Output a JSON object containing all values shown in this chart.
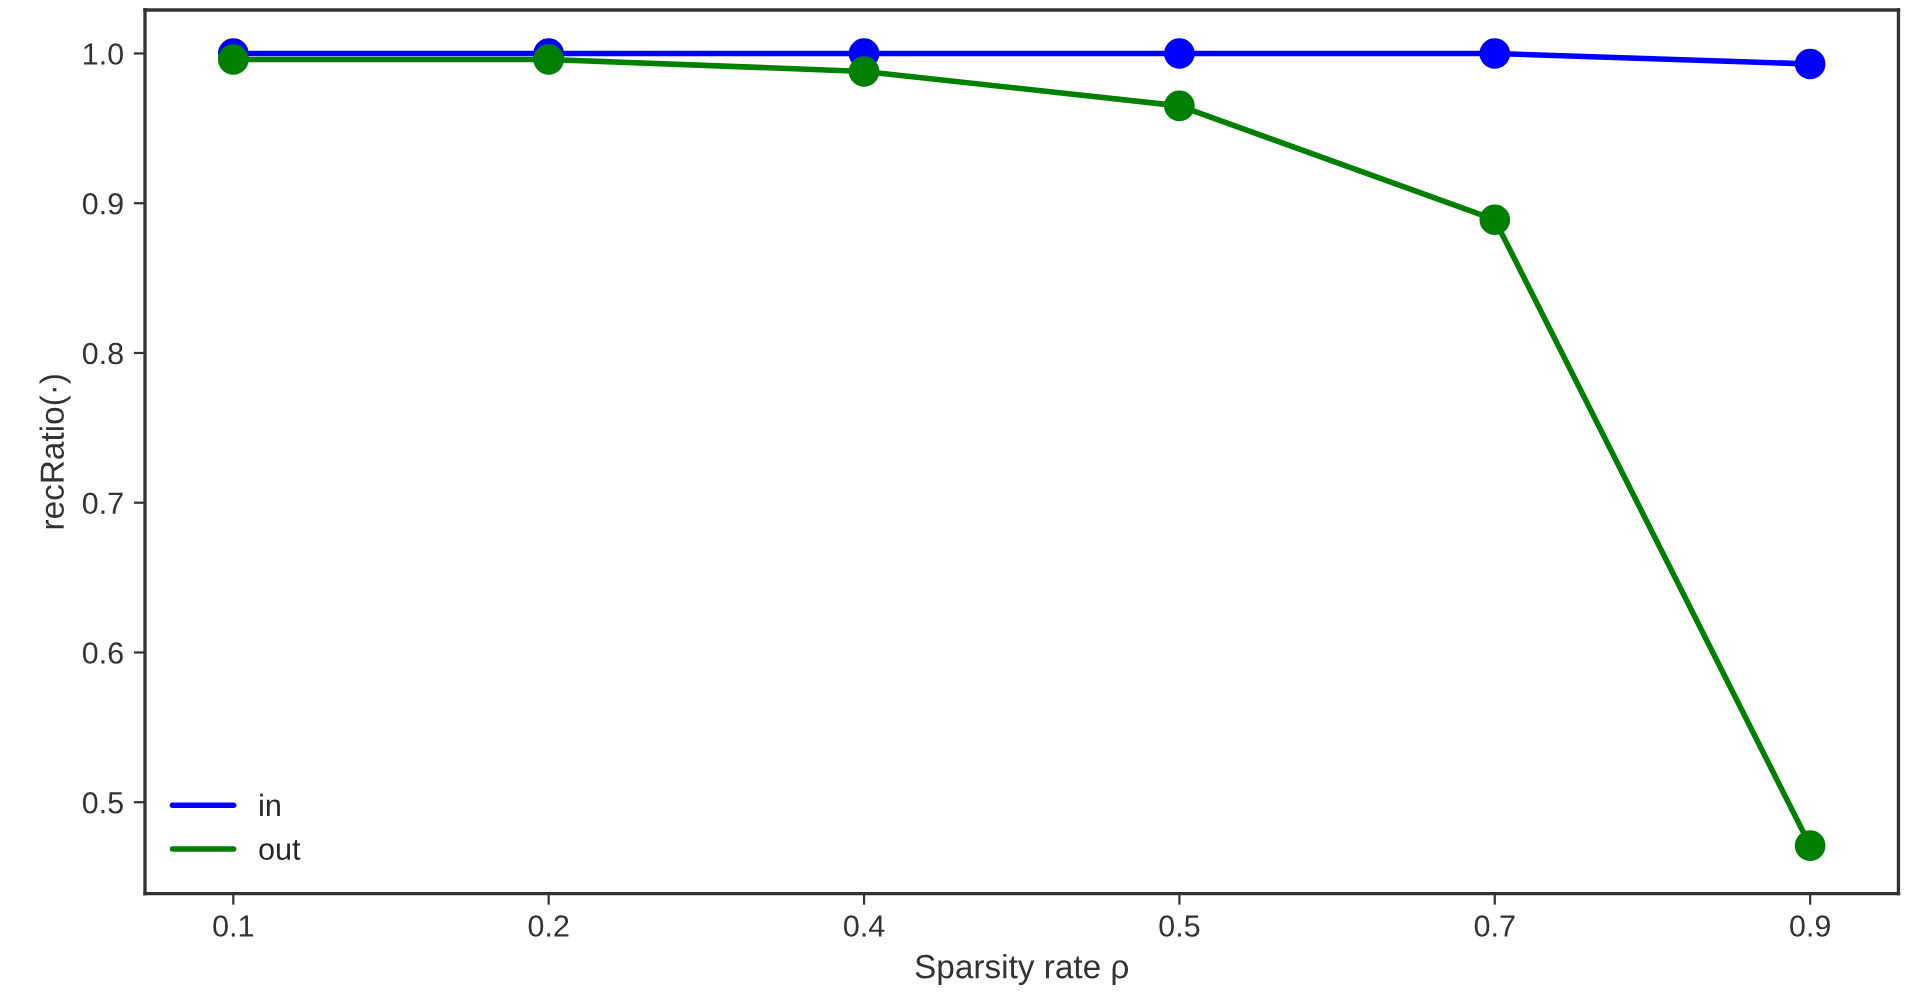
{
  "chart_data": {
    "type": "line",
    "xlabel": "Sparsity rate ρ",
    "ylabel": "recRatio(·)",
    "categories": [
      "0.1",
      "0.2",
      "0.4",
      "0.5",
      "0.7",
      "0.9"
    ],
    "series": [
      {
        "name": "in",
        "color": "#0000ff",
        "values": [
          1.0,
          1.0,
          1.0,
          1.0,
          1.0,
          0.993
        ]
      },
      {
        "name": "out",
        "color": "#008000",
        "values": [
          0.996,
          0.996,
          0.988,
          0.965,
          0.889,
          0.471
        ]
      }
    ],
    "ylim": [
      0.439,
      1.029
    ],
    "yticks": [
      0.5,
      0.6,
      0.7,
      0.8,
      0.9,
      {
        "value": 1.0,
        "label": "1.0"
      }
    ],
    "grid": false,
    "legend": "bottom left",
    "marker": "circle",
    "line_style": "solid"
  }
}
